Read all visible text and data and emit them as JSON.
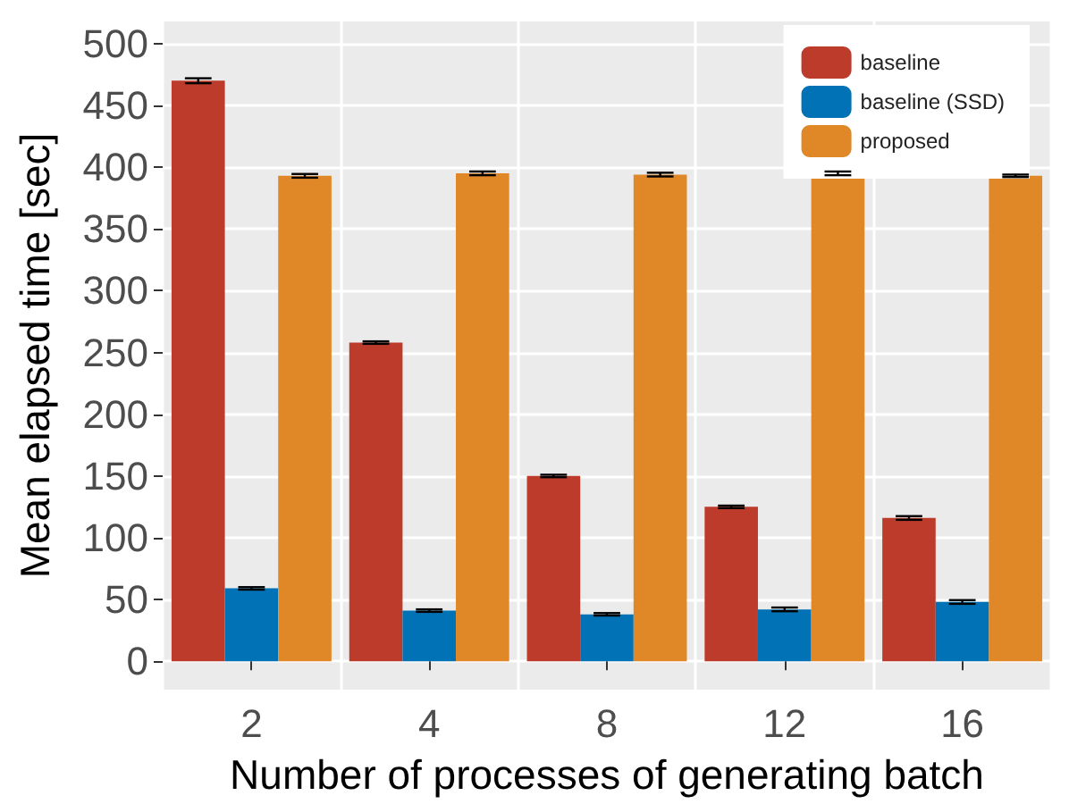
{
  "chart_data": {
    "type": "bar",
    "xlabel": "Number of processes of generating batch",
    "ylabel": "Mean elapsed time [sec]",
    "categories": [
      "2",
      "4",
      "8",
      "12",
      "16"
    ],
    "series": [
      {
        "name": "baseline",
        "color": "#bd3b2b",
        "values": [
          470,
          258,
          150,
          125,
          116
        ],
        "errors": [
          2,
          1,
          1,
          1,
          1.5
        ]
      },
      {
        "name": "baseline (SSD)",
        "color": "#0072b5",
        "values": [
          59,
          41,
          38,
          42,
          48
        ],
        "errors": [
          1,
          1,
          1,
          1.5,
          1.5
        ]
      },
      {
        "name": "proposed",
        "color": "#e08828",
        "values": [
          393,
          395,
          394,
          395,
          393
        ],
        "errors": [
          1.5,
          1.5,
          1.5,
          1.5,
          1
        ]
      }
    ],
    "ylim": [
      -23,
      518
    ],
    "yticks": [
      0,
      50,
      100,
      150,
      200,
      250,
      300,
      350,
      400,
      450,
      500
    ],
    "grid": true,
    "legend": "top right"
  }
}
